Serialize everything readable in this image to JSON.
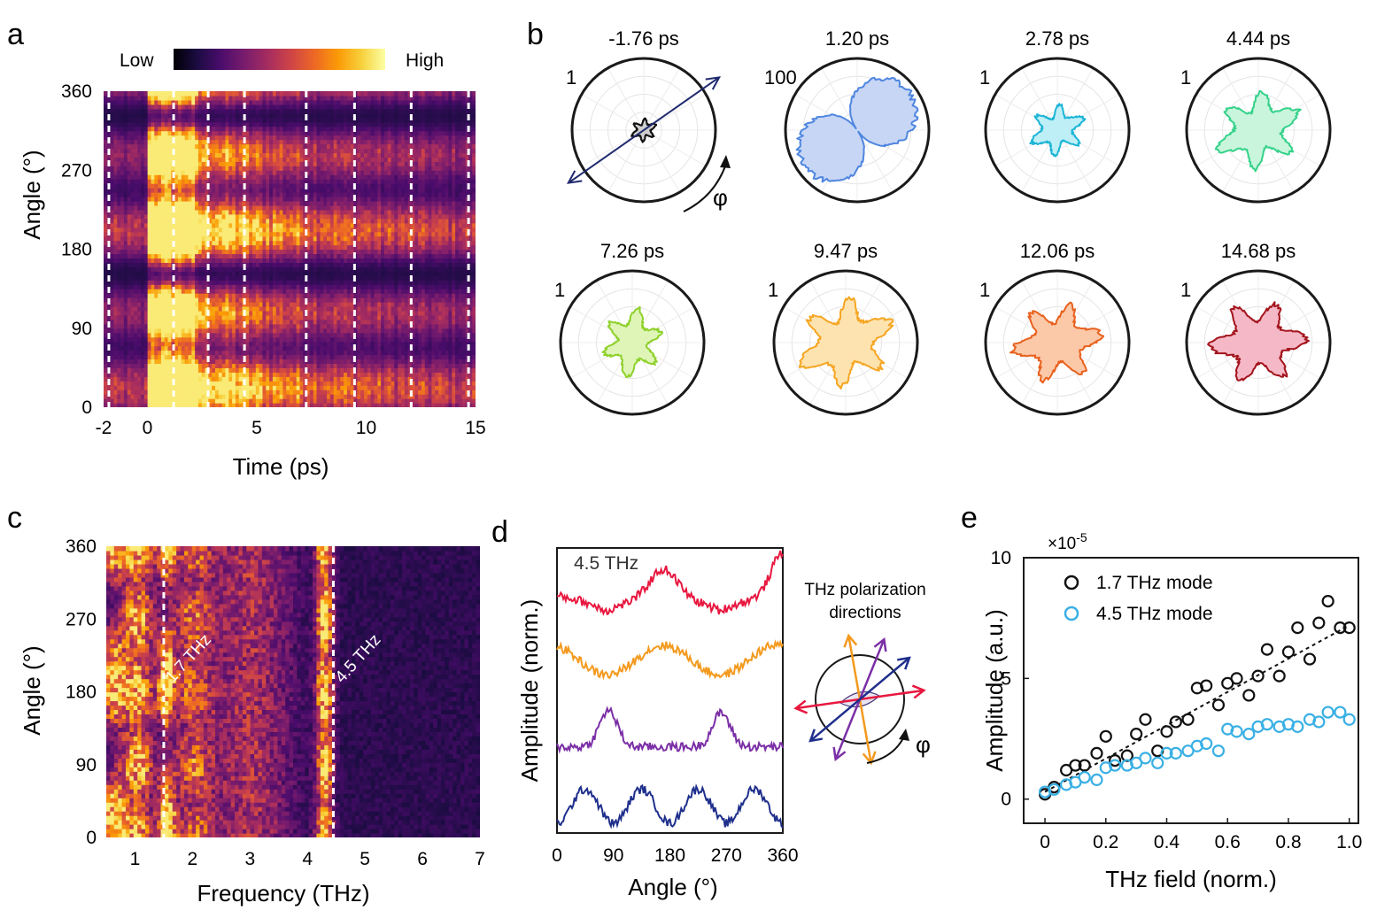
{
  "panel_labels": [
    "a",
    "b",
    "c",
    "d",
    "e"
  ],
  "colors": {
    "inferno": [
      "#000004",
      "#1b0c41",
      "#4a0c6b",
      "#781c6d",
      "#a52c60",
      "#cf4446",
      "#ed6925",
      "#fb9b06",
      "#f7d13d",
      "#fcffa4"
    ],
    "frame": "#1a1a1a"
  },
  "chart_data": [
    {
      "id": "a",
      "type": "heatmap",
      "xlabel": "Time (ps)",
      "ylabel": "Angle (°)",
      "xlim": [
        -2,
        15
      ],
      "ylim": [
        0,
        360
      ],
      "xticks": [
        -2,
        0,
        5,
        10,
        15
      ],
      "yticks": [
        0,
        90,
        180,
        270,
        360
      ],
      "colorbar": {
        "low_label": "Low",
        "high_label": "High",
        "colormap": "inferno"
      },
      "dashed_lines_x": [
        -1.76,
        1.2,
        2.78,
        4.44,
        7.26,
        9.47,
        12.06,
        14.68
      ]
    },
    {
      "id": "b",
      "type": "polar",
      "phi_label": "φ",
      "polarizer_arrow_deg": 35,
      "subplots": [
        {
          "time": "-1.76 ps",
          "scale": "1",
          "color": "#111111",
          "fill": "#cfcfcf",
          "shape": "star",
          "r": 0.18,
          "axis_deg": 25
        },
        {
          "time": "1.20 ps",
          "scale": "100",
          "color": "#4f86e0",
          "fill": "#c7d6f5",
          "shape": "lobes",
          "r": 0.9,
          "axis_deg": 35
        },
        {
          "time": "2.78 ps",
          "scale": "1",
          "color": "#1cb5d6",
          "fill": "#bfeff6",
          "shape": "star",
          "r": 0.4,
          "axis_deg": 25
        },
        {
          "time": "4.44 ps",
          "scale": "1",
          "color": "#35d28a",
          "fill": "#c8f5dc",
          "shape": "star",
          "r": 0.62,
          "axis_deg": 25
        },
        {
          "time": "7.26 ps",
          "scale": "1",
          "color": "#8fd12c",
          "fill": "#dff5b8",
          "shape": "star",
          "r": 0.48,
          "axis_deg": 80
        },
        {
          "time": "9.47 ps",
          "scale": "1",
          "color": "#f5a623",
          "fill": "#fde3b0",
          "shape": "star",
          "r": 0.7,
          "axis_deg": 25
        },
        {
          "time": "12.06 ps",
          "scale": "1",
          "color": "#e8611e",
          "fill": "#fbc9a8",
          "shape": "star",
          "r": 0.64,
          "axis_deg": 10
        },
        {
          "time": "14.68 ps",
          "scale": "1",
          "color": "#a3141c",
          "fill": "#f5b8c6",
          "shape": "star",
          "r": 0.68,
          "axis_deg": 5
        }
      ]
    },
    {
      "id": "c",
      "type": "heatmap",
      "xlabel": "Frequency (THz)",
      "ylabel": "Angle (°)",
      "xlim": [
        0.5,
        7
      ],
      "ylim": [
        0,
        360
      ],
      "xticks": [
        1,
        2,
        3,
        4,
        5,
        6,
        7
      ],
      "yticks": [
        0,
        90,
        180,
        270,
        360
      ],
      "annotations": [
        {
          "text": "1.7 THz",
          "x": 1.5
        },
        {
          "text": "4.5 THz",
          "x": 4.45
        }
      ]
    },
    {
      "id": "d",
      "type": "line",
      "xlabel": "Angle (°)",
      "ylabel": "Amplitude (norm.)",
      "xlim": [
        0,
        360
      ],
      "xticks": [
        0,
        90,
        180,
        270,
        360
      ],
      "inset_label": "4.5 THz",
      "series": [
        {
          "name": "red",
          "color": "#e8173f"
        },
        {
          "name": "orange",
          "color": "#f39a1e"
        },
        {
          "name": "purple",
          "color": "#7b2fa6"
        },
        {
          "name": "blue",
          "color": "#1f2f8c"
        }
      ],
      "polarization_diagram": {
        "title_lines": [
          "THz polarization",
          "directions"
        ],
        "phi_label": "φ",
        "arrows": [
          {
            "color": "#e8173f",
            "angle_deg": 8
          },
          {
            "color": "#f39a1e",
            "angle_deg": 100
          },
          {
            "color": "#7b2fa6",
            "angle_deg": 68
          },
          {
            "color": "#1f2f8c",
            "angle_deg": 40
          }
        ]
      }
    },
    {
      "id": "e",
      "type": "scatter",
      "xlabel": "THz field (norm.)",
      "ylabel": "Amplitude (a.u.)",
      "xlim": [
        -0.07,
        1.03
      ],
      "ylim": [
        -1,
        10
      ],
      "xticks": [
        0,
        0.2,
        0.4,
        0.6,
        0.8,
        1.0
      ],
      "xtick_labels": [
        "0",
        "0.2",
        "0.4",
        "0.6",
        "0.8",
        "1.0"
      ],
      "yticks": [
        0,
        5,
        10
      ],
      "ymultiplier": "×10",
      "ymultiplier_exp": "-5",
      "legend_position": "top-left",
      "series": [
        {
          "name": "1.7 THz mode",
          "color": "#111111",
          "x": [
            0.0,
            0.03,
            0.07,
            0.1,
            0.13,
            0.17,
            0.2,
            0.23,
            0.27,
            0.3,
            0.33,
            0.37,
            0.4,
            0.43,
            0.47,
            0.5,
            0.53,
            0.57,
            0.6,
            0.63,
            0.67,
            0.7,
            0.73,
            0.77,
            0.8,
            0.83,
            0.87,
            0.9,
            0.93,
            0.97,
            1.0
          ],
          "y": [
            0.2,
            0.5,
            1.2,
            1.4,
            1.4,
            1.9,
            2.6,
            1.6,
            1.8,
            2.7,
            3.3,
            2.0,
            2.8,
            3.2,
            3.3,
            4.6,
            4.7,
            3.9,
            4.8,
            5.0,
            4.3,
            5.1,
            6.2,
            5.1,
            6.1,
            7.1,
            5.8,
            7.3,
            8.2,
            7.1,
            7.1
          ],
          "fit": {
            "x": [
              0,
              1
            ],
            "y": [
              0.3,
              7.2
            ]
          }
        },
        {
          "name": "4.5 THz mode",
          "color": "#3ab0e4",
          "x": [
            0.0,
            0.03,
            0.07,
            0.1,
            0.13,
            0.17,
            0.2,
            0.23,
            0.27,
            0.3,
            0.33,
            0.37,
            0.4,
            0.43,
            0.47,
            0.5,
            0.53,
            0.57,
            0.6,
            0.63,
            0.67,
            0.7,
            0.73,
            0.77,
            0.8,
            0.83,
            0.87,
            0.9,
            0.93,
            0.97,
            1.0
          ],
          "y": [
            0.3,
            0.4,
            0.6,
            0.7,
            0.9,
            0.8,
            1.3,
            1.4,
            1.4,
            1.5,
            1.7,
            1.5,
            1.9,
            1.9,
            2.0,
            2.2,
            2.3,
            2.0,
            2.9,
            2.8,
            2.7,
            3.0,
            3.1,
            3.0,
            3.1,
            3.0,
            3.3,
            3.2,
            3.6,
            3.6,
            3.3
          ]
        }
      ]
    }
  ]
}
